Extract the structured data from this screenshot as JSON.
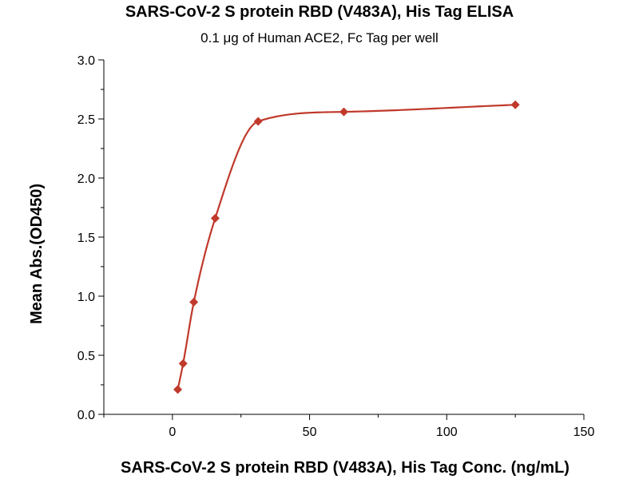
{
  "chart_data": {
    "type": "scatter",
    "title": "SARS-CoV-2 S protein RBD (V483A), His Tag ELISA",
    "subtitle": "0.1 μg of Human ACE2, Fc Tag per well",
    "xlabel": "SARS-CoV-2 S protein RBD (V483A), His Tag Conc. (ng/mL)",
    "ylabel": "Mean Abs.(OD450)",
    "xlim": [
      -25,
      150
    ],
    "ylim": [
      0,
      3.0
    ],
    "xticks": [
      0,
      50,
      100,
      150
    ],
    "yticks": [
      "0.0",
      "0.5",
      "1.0",
      "1.5",
      "2.0",
      "2.5",
      "3.0"
    ],
    "grid": false,
    "marker_color": "#c0392b",
    "curve_color": "#c0392b",
    "series": [
      {
        "x": [
          1.95,
          3.9,
          7.8,
          15.6,
          31.25,
          62.5,
          125
        ],
        "y": [
          0.21,
          0.43,
          0.95,
          1.66,
          2.48,
          2.56,
          2.62
        ]
      }
    ]
  }
}
